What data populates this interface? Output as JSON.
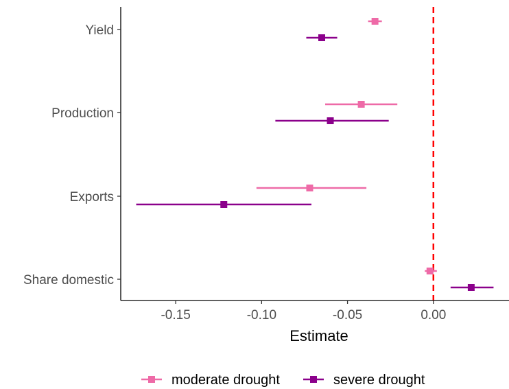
{
  "chart_data": {
    "type": "forest",
    "title": "",
    "xlabel": "Estimate",
    "ylabel": "",
    "xlim": [
      -0.182,
      0.044
    ],
    "x_ticks": [
      -0.15,
      -0.1,
      -0.05,
      0.0
    ],
    "x_tick_labels": [
      "-0.15",
      "-0.10",
      "-0.05",
      "0.00"
    ],
    "categories": [
      "Yield",
      "Production",
      "Exports",
      "Share domestic"
    ],
    "reference_line": {
      "x": 0.0,
      "style": "dashed",
      "color": "#ff0000"
    },
    "grid": false,
    "legend_position": "bottom",
    "series": [
      {
        "name": "moderate drought",
        "color": "#ee6aa7",
        "points": [
          {
            "category": "Yield",
            "estimate": -0.034,
            "low": -0.038,
            "high": -0.03
          },
          {
            "category": "Production",
            "estimate": -0.042,
            "low": -0.063,
            "high": -0.021
          },
          {
            "category": "Exports",
            "estimate": -0.072,
            "low": -0.103,
            "high": -0.039
          },
          {
            "category": "Share domestic",
            "estimate": -0.002,
            "low": -0.005,
            "high": 0.002
          }
        ]
      },
      {
        "name": "severe drought",
        "color": "#8b008b",
        "points": [
          {
            "category": "Yield",
            "estimate": -0.065,
            "low": -0.074,
            "high": -0.056
          },
          {
            "category": "Production",
            "estimate": -0.06,
            "low": -0.092,
            "high": -0.026
          },
          {
            "category": "Exports",
            "estimate": -0.122,
            "low": -0.173,
            "high": -0.071
          },
          {
            "category": "Share domestic",
            "estimate": 0.022,
            "low": 0.01,
            "high": 0.035
          }
        ]
      }
    ]
  }
}
